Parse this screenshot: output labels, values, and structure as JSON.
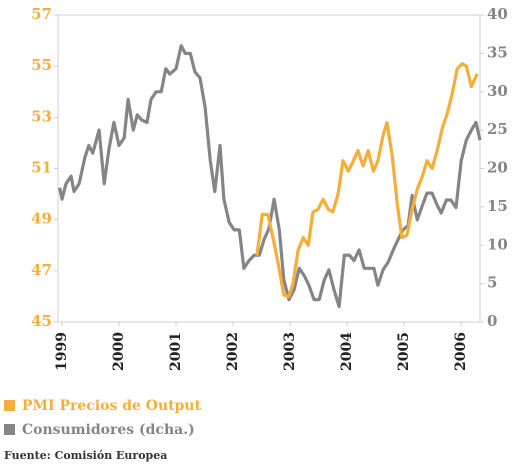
{
  "chart_data": {
    "type": "line",
    "series": [
      {
        "name": "PMI Precios de Output",
        "color": "#f5ae3a",
        "axis": "y",
        "x": [
          2002.42,
          2002.51,
          2002.61,
          2002.7,
          2002.79,
          2002.89,
          2002.98,
          2003.05,
          2003.14,
          2003.23,
          2003.32,
          2003.4,
          2003.49,
          2003.58,
          2003.67,
          2003.75,
          2003.84,
          2003.93,
          2004.02,
          2004.11,
          2004.19,
          2004.28,
          2004.37,
          2004.46,
          2004.54,
          2004.63,
          2004.7,
          2004.79,
          2004.88,
          2004.96,
          2005.05,
          2005.14,
          2005.23,
          2005.32,
          2005.4,
          2005.49,
          2005.58,
          2005.67,
          2005.75,
          2005.84,
          2005.93,
          2006.02,
          2006.09,
          2006.18,
          2006.28
        ],
        "values": [
          47.6,
          49.2,
          49.2,
          48.3,
          47.3,
          46.05,
          46,
          46.5,
          47.8,
          48.3,
          48,
          49.3,
          49.4,
          49.8,
          49.4,
          49.3,
          50,
          51.3,
          50.9,
          51.3,
          51.7,
          51.1,
          51.7,
          50.9,
          51.3,
          52.3,
          52.8,
          51.5,
          49.6,
          48.3,
          48.4,
          49.4,
          50.2,
          50.7,
          51.3,
          51,
          51.7,
          52.6,
          53.1,
          53.9,
          54.9,
          55.1,
          55,
          54.2,
          54.7
        ]
      },
      {
        "name": "Consumidores (dcha.)",
        "color": "#858585",
        "axis": "y2",
        "x": [
          1998.96,
          1999.0,
          1999.07,
          1999.16,
          1999.21,
          1999.3,
          1999.4,
          1999.47,
          1999.54,
          1999.65,
          1999.74,
          1999.82,
          1999.91,
          2000.0,
          2000.09,
          2000.16,
          2000.25,
          2000.32,
          2000.4,
          2000.49,
          2000.56,
          2000.65,
          2000.74,
          2000.82,
          2000.89,
          2001.0,
          2001.09,
          2001.16,
          2001.25,
          2001.33,
          2001.42,
          2001.51,
          2001.6,
          2001.68,
          2001.77,
          2001.84,
          2001.93,
          2002.02,
          2002.11,
          2002.19,
          2002.28,
          2002.37,
          2002.46,
          2002.54,
          2002.63,
          2002.72,
          2002.81,
          2002.89,
          2002.98,
          2003.07,
          2003.16,
          2003.25,
          2003.33,
          2003.42,
          2003.51,
          2003.6,
          2003.68,
          2003.77,
          2003.86,
          2003.95,
          2004.04,
          2004.12,
          2004.21,
          2004.3,
          2004.39,
          2004.47,
          2004.54,
          2004.63,
          2004.72,
          2004.81,
          2004.89,
          2004.98,
          2005.07,
          2005.14,
          2005.23,
          2005.32,
          2005.4,
          2005.49,
          2005.58,
          2005.65,
          2005.74,
          2005.82,
          2005.91,
          2006.0,
          2006.09,
          2006.18,
          2006.26,
          2006.33
        ],
        "values": [
          17.5,
          16,
          18,
          19,
          17,
          18,
          21.4,
          23,
          22,
          25,
          18,
          22.4,
          26,
          23,
          24,
          29,
          25,
          27,
          26.3,
          26,
          29,
          30,
          30,
          33,
          32.3,
          33,
          36,
          35,
          35,
          32.6,
          31.8,
          28,
          21,
          17,
          23,
          16,
          13,
          12,
          12,
          7,
          8,
          8.7,
          8.7,
          10.7,
          12.2,
          16,
          12,
          5.5,
          2.9,
          4.2,
          7,
          6,
          4.8,
          2.9,
          2.9,
          5.5,
          6.8,
          4.2,
          2,
          8.7,
          8.7,
          8,
          9.4,
          7,
          7,
          7,
          4.8,
          6.8,
          7.8,
          9.4,
          10.7,
          12,
          12.6,
          16.5,
          13.3,
          15.2,
          16.8,
          16.8,
          15.2,
          14.2,
          15.9,
          15.9,
          14.9,
          21,
          23.7,
          25,
          26,
          23.7
        ]
      }
    ],
    "xlim": [
      1998.93,
      2006.33
    ],
    "xticks": [
      1999,
      2000,
      2001,
      2002,
      2003,
      2004,
      2005,
      2006
    ],
    "ylim": [
      45,
      57
    ],
    "yticks": [
      45,
      47,
      49,
      51,
      53,
      55,
      57
    ],
    "y2lim": [
      0,
      40
    ],
    "y2ticks": [
      0,
      5,
      10,
      15,
      20,
      25,
      30,
      35,
      40
    ],
    "source": "Fuente: Comisión Europea"
  }
}
